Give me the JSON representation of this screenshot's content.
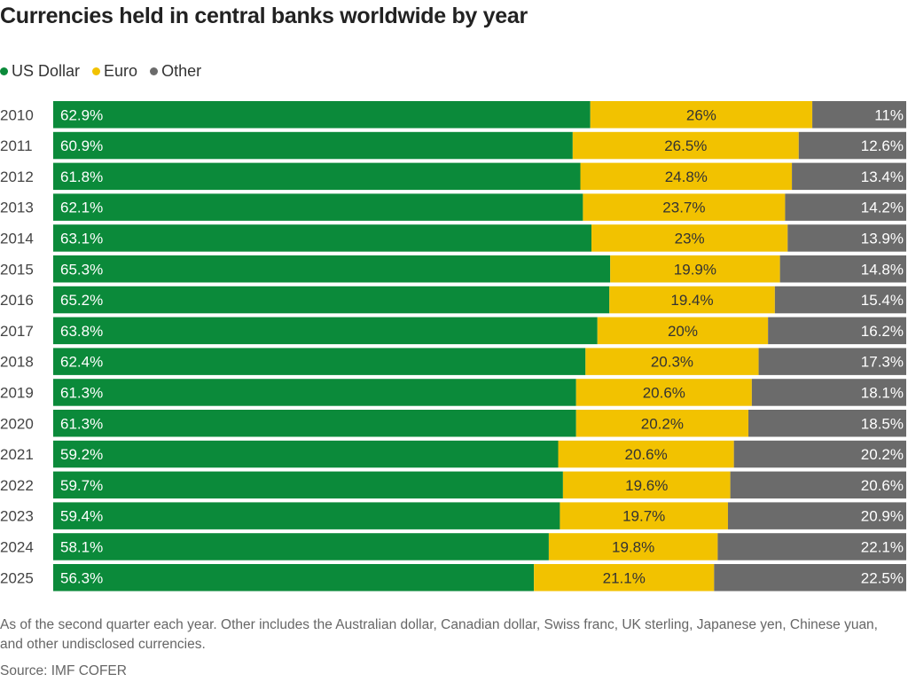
{
  "title": "Currencies held in central banks worldwide by year",
  "note": "As of the second quarter each year. Other includes the Australian dollar, Canadian dollar, Swiss franc, UK sterling, Japanese yen, Chinese yuan, and other undisclosed currencies.",
  "source": "Source: IMF COFER",
  "colors": {
    "us_dollar": "#0b8a3a",
    "euro": "#f2c200",
    "other": "#6b6b6b",
    "label": "#ffffff",
    "euro_label": "#333333"
  },
  "chart_data": {
    "type": "bar",
    "orientation": "horizontal",
    "stacked": true,
    "categories": [
      "2010",
      "2011",
      "2012",
      "2013",
      "2014",
      "2015",
      "2016",
      "2017",
      "2018",
      "2019",
      "2020",
      "2021",
      "2022",
      "2023",
      "2024",
      "2025"
    ],
    "series": [
      {
        "name": "US Dollar",
        "values": [
          62.9,
          60.9,
          61.8,
          62.1,
          63.1,
          65.3,
          65.2,
          63.8,
          62.4,
          61.3,
          61.3,
          59.2,
          59.7,
          59.4,
          58.1,
          56.3
        ]
      },
      {
        "name": "Euro",
        "values": [
          26,
          26.5,
          24.8,
          23.7,
          23,
          19.9,
          19.4,
          20,
          20.3,
          20.6,
          20.2,
          20.6,
          19.6,
          19.7,
          19.8,
          21.1
        ]
      },
      {
        "name": "Other",
        "values": [
          11,
          12.6,
          13.4,
          14.2,
          13.9,
          14.8,
          15.4,
          16.2,
          17.3,
          18.1,
          18.5,
          20.2,
          20.6,
          20.9,
          22.1,
          22.5
        ]
      }
    ],
    "value_suffix": "%",
    "legend_position": "top-left"
  }
}
